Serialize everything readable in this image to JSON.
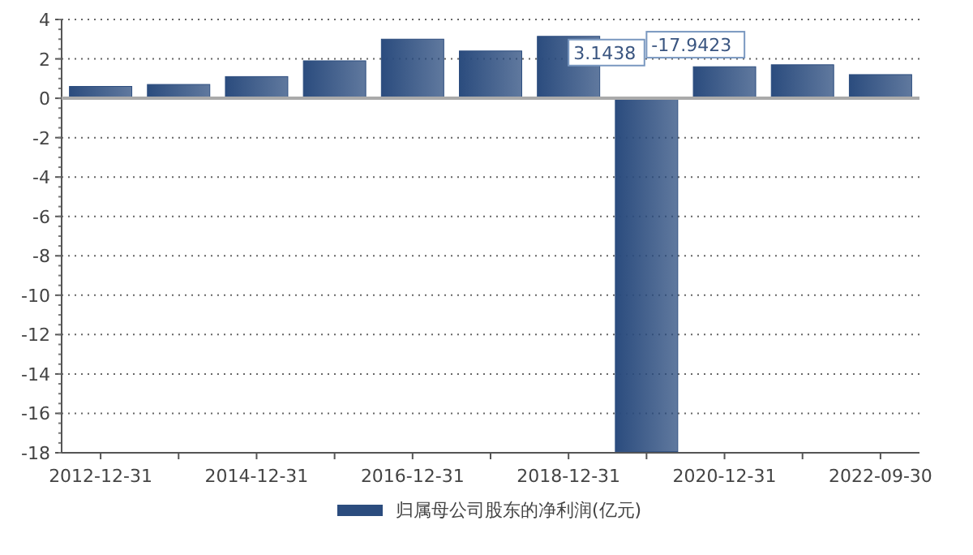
{
  "chart_data": {
    "type": "bar",
    "categories": [
      "2012-12-31",
      null,
      "2014-12-31",
      null,
      "2016-12-31",
      null,
      "2018-12-31",
      null,
      "2020-12-31",
      null,
      "2022-09-30"
    ],
    "series": [
      {
        "name": "归属母公司股东的净利润(亿元)",
        "color": "#2b4c7e",
        "values": [
          0.6,
          0.7,
          1.1,
          1.9,
          3.0,
          2.4,
          3.1438,
          -17.9423,
          1.6,
          1.7,
          1.2
        ],
        "value_labels": [
          null,
          null,
          null,
          null,
          null,
          null,
          "3.1438",
          "-17.9423",
          null,
          null,
          null
        ]
      }
    ],
    "ylim": [
      -18,
      4
    ],
    "yticks": [
      -18,
      -16,
      -14,
      -12,
      -10,
      -8,
      -6,
      -4,
      -2,
      0,
      2,
      4
    ],
    "grid": "y",
    "legend": "bottom"
  }
}
